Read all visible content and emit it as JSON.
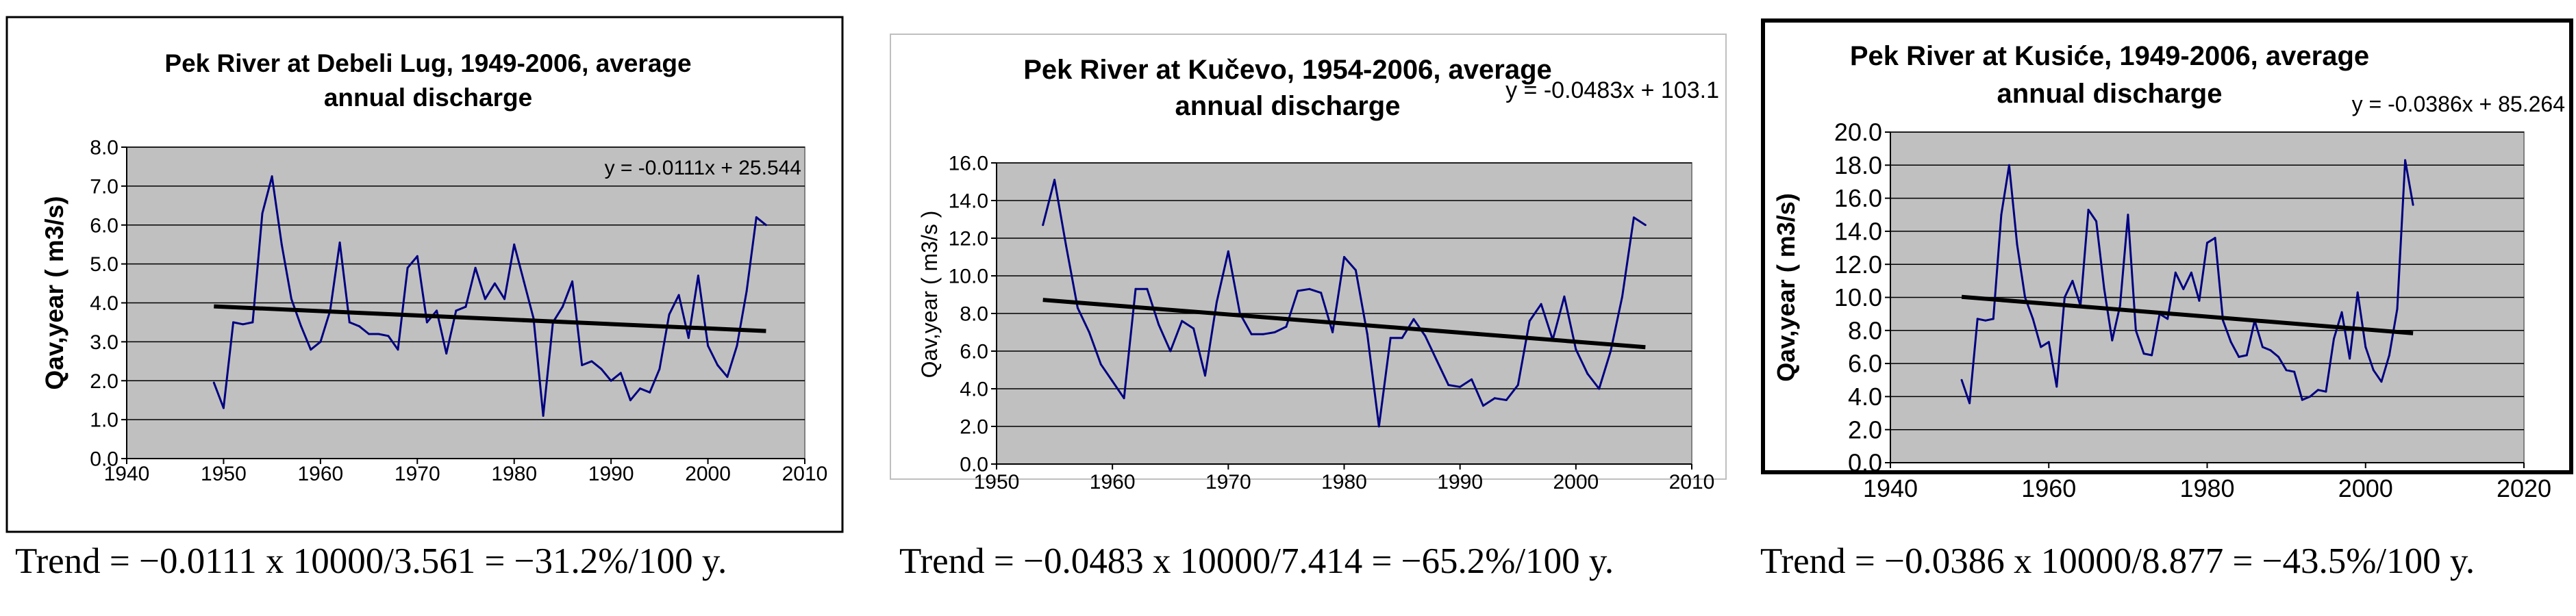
{
  "charts": [
    {
      "type": "line",
      "title_lines": [
        "Pek River at Debeli Lug, 1949-2006, average",
        "annual discharge"
      ],
      "ylabel": "Qav,year ( m3/s)",
      "xlabel": "",
      "xlim": [
        1940,
        2010
      ],
      "xticks": [
        1940,
        1950,
        1960,
        1970,
        1980,
        1990,
        2000,
        2010
      ],
      "ylim": [
        0,
        8
      ],
      "yticks": [
        0,
        1,
        2,
        3,
        4,
        5,
        6,
        7,
        8
      ],
      "ytick_decimals": 1,
      "grid": true,
      "equation": "y = -0.0111x + 25.544",
      "trend": {
        "slope": -0.0111,
        "intercept": 25.544,
        "x_start": 1949,
        "x_end": 2006
      },
      "series": [
        {
          "name": "Qav,year",
          "color": "#000080",
          "x_start": 1949,
          "values": [
            1.95,
            1.3,
            3.5,
            3.45,
            3.5,
            6.3,
            7.25,
            5.5,
            4.1,
            3.4,
            2.8,
            3.0,
            3.8,
            5.55,
            3.5,
            3.4,
            3.2,
            3.2,
            3.15,
            2.8,
            4.9,
            5.2,
            3.5,
            3.8,
            2.7,
            3.8,
            3.9,
            4.9,
            4.1,
            4.5,
            4.1,
            5.5,
            4.55,
            3.6,
            1.1,
            3.5,
            3.9,
            4.55,
            2.4,
            2.5,
            2.3,
            2.0,
            2.2,
            1.5,
            1.8,
            1.7,
            2.3,
            3.7,
            4.2,
            3.1,
            4.7,
            2.9,
            2.4,
            2.1,
            2.9,
            4.3,
            6.2,
            6.0
          ]
        }
      ]
    },
    {
      "type": "line",
      "title_lines": [
        "Pek River at Kučevo, 1954-2006, average",
        "annual discharge"
      ],
      "ylabel": "Qav,year ( m3/s )",
      "xlabel": "",
      "xlim": [
        1950,
        2010
      ],
      "xticks": [
        1950,
        1960,
        1970,
        1980,
        1990,
        2000,
        2010
      ],
      "ylim": [
        0,
        16
      ],
      "yticks": [
        0,
        2,
        4,
        6,
        8,
        10,
        12,
        14,
        16
      ],
      "ytick_decimals": 1,
      "grid": true,
      "equation": "y = -0.0483x + 103.1",
      "trend": {
        "slope": -0.0483,
        "intercept": 103.1,
        "x_start": 1954,
        "x_end": 2006
      },
      "series": [
        {
          "name": "Qav,year",
          "color": "#000080",
          "x_start": 1954,
          "values": [
            12.7,
            15.1,
            11.6,
            8.3,
            7.0,
            5.3,
            4.4,
            3.5,
            9.3,
            9.3,
            7.4,
            6.0,
            7.6,
            7.2,
            4.7,
            8.6,
            11.3,
            8.0,
            6.9,
            6.9,
            7.0,
            7.3,
            9.2,
            9.3,
            9.1,
            7.0,
            11.0,
            10.3,
            6.9,
            2.0,
            6.7,
            6.7,
            7.7,
            6.8,
            5.5,
            4.2,
            4.1,
            4.5,
            3.1,
            3.5,
            3.4,
            4.2,
            7.6,
            8.5,
            6.6,
            8.9,
            6.1,
            4.8,
            4.0,
            6.0,
            8.9,
            13.1,
            12.7
          ]
        }
      ]
    },
    {
      "type": "line",
      "title_lines": [
        "Pek River at Kusiće, 1949-2006, average",
        "annual discharge"
      ],
      "ylabel": "Qav,year ( m3/s)",
      "xlabel": "",
      "xlim": [
        1940,
        2020
      ],
      "xticks": [
        1940,
        1960,
        1980,
        2000,
        2020
      ],
      "ylim": [
        0,
        20
      ],
      "yticks": [
        0,
        2,
        4,
        6,
        8,
        10,
        12,
        14,
        16,
        18,
        20
      ],
      "ytick_decimals": 1,
      "grid": true,
      "equation": "y = -0.0386x + 85.264",
      "trend": {
        "slope": -0.0386,
        "intercept": 85.264,
        "x_start": 1949,
        "x_end": 2006
      },
      "series": [
        {
          "name": "Qav,year",
          "color": "#000080",
          "x_start": 1949,
          "values": [
            5.0,
            3.6,
            8.7,
            8.6,
            8.7,
            15.0,
            18.0,
            13.2,
            10.0,
            8.7,
            7.0,
            7.3,
            4.6,
            10.0,
            11.0,
            9.5,
            15.3,
            14.6,
            10.5,
            7.4,
            9.5,
            15.0,
            8.0,
            6.6,
            6.5,
            9.0,
            8.7,
            11.5,
            10.5,
            11.5,
            9.8,
            13.3,
            13.6,
            8.6,
            7.3,
            6.4,
            6.5,
            8.6,
            7.0,
            6.8,
            6.4,
            5.6,
            5.5,
            3.8,
            4.0,
            4.4,
            4.3,
            7.5,
            9.1,
            6.3,
            10.3,
            7.0,
            5.6,
            4.9,
            6.5,
            9.3,
            18.3,
            15.6
          ]
        }
      ]
    }
  ],
  "captions": [
    "Trend = −0.0111 x 10000/3.561 = −31.2%/100 y.",
    "Trend = −0.0483 x 10000/7.414 = −65.2%/100 y.",
    "Trend = −0.0386 x 10000/8.877 = −43.5%/100 y."
  ],
  "style": {
    "plot_bg": "#c0c0c0",
    "series_color": "#000080",
    "trend_color": "#000000"
  }
}
